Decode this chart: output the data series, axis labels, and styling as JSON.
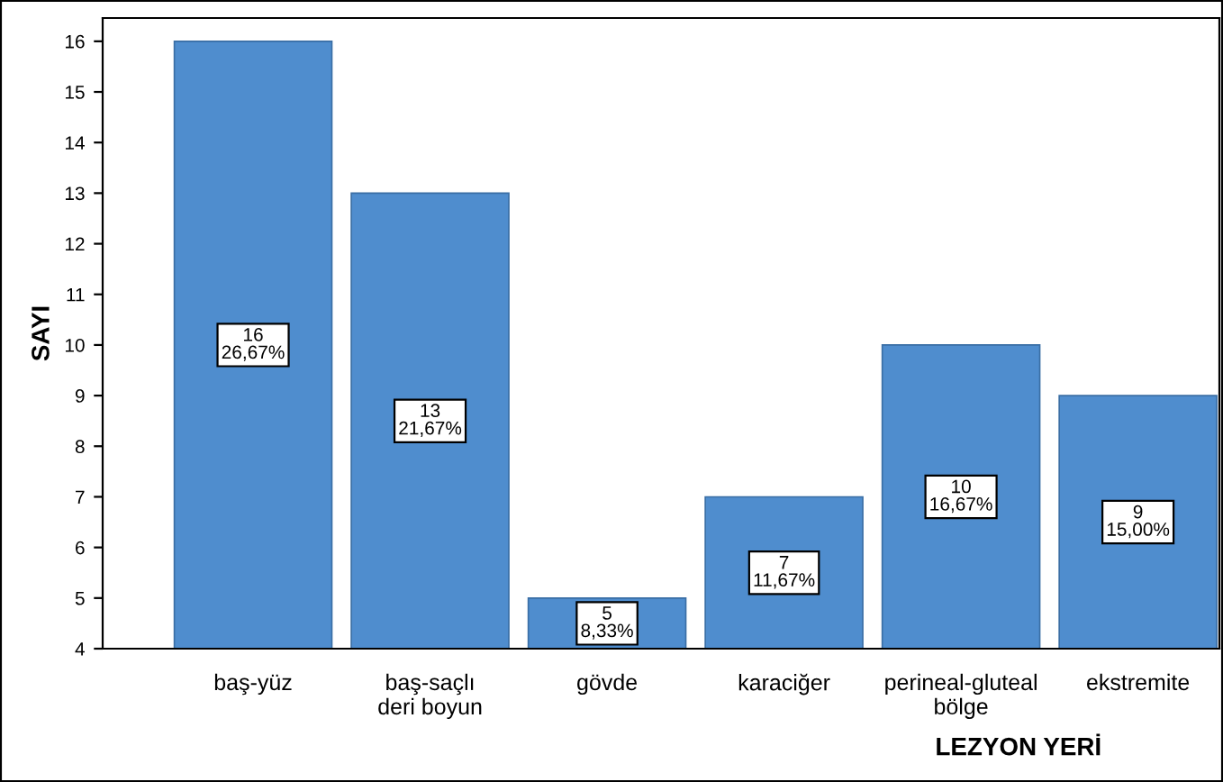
{
  "chart_data": {
    "type": "bar",
    "xlabel": "LEZYON YERİ",
    "ylabel": "SAYI",
    "categories": [
      "baş-yüz",
      "baş-saçlı\nderi boyun",
      "gövde",
      "karaciğer",
      "perineal-gluteal\nbölge",
      "ekstremite"
    ],
    "values": [
      16,
      13,
      5,
      7,
      10,
      9
    ],
    "value_labels": [
      "16\n26,67%",
      "13\n21,67%",
      "5\n8,33%",
      "7\n11,67%",
      "10\n16,67%",
      "9\n15,00%"
    ],
    "color": "#4f8dce",
    "ylim": [
      4,
      16.46
    ],
    "yticks": [
      4,
      5,
      6,
      7,
      8,
      9,
      10,
      11,
      12,
      13,
      14,
      15,
      16
    ],
    "grid": false
  }
}
